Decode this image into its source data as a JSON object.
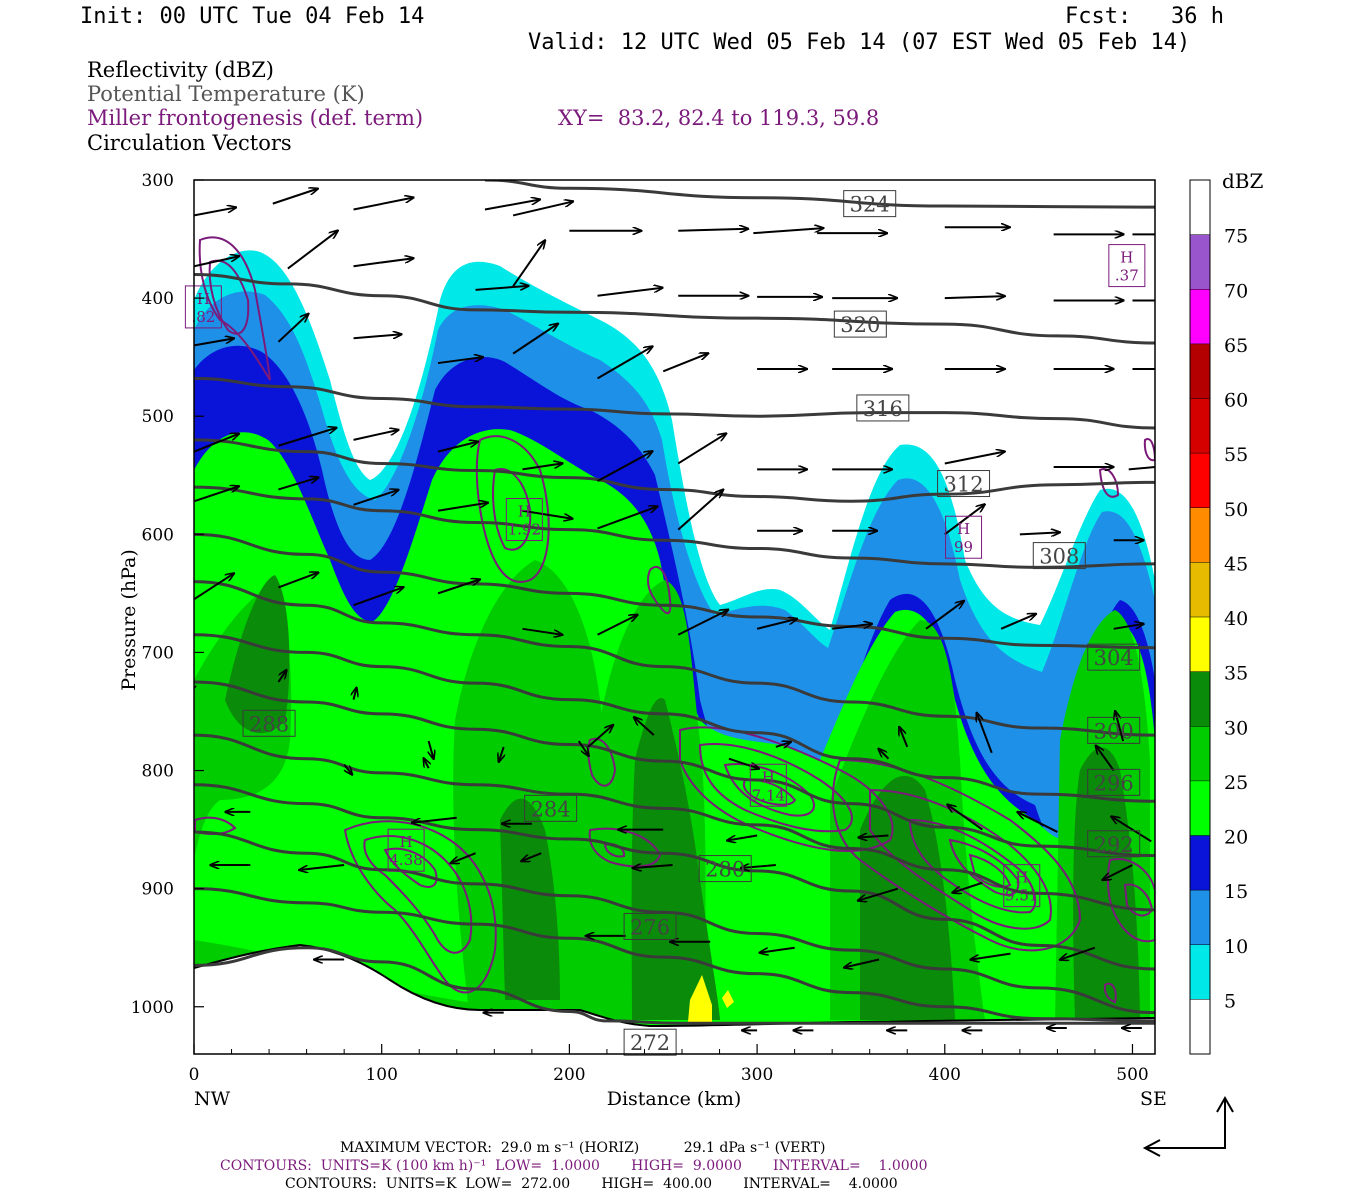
{
  "header": {
    "init": "Init: 00 UTC Tue 04 Feb 14",
    "fcst": "Fcst:   36 h",
    "valid": "Valid: 12 UTC Wed 05 Feb 14 (07 EST Wed 05 Feb 14)"
  },
  "fields": {
    "reflectivity": "Reflectivity (dBZ)",
    "theta": "Potential Temperature (K)",
    "miller": "Miller frontogenesis (def. term)",
    "xy": "XY=  83.2, 82.4 to 119.3, 59.8",
    "vectors": "Circulation Vectors"
  },
  "colors": {
    "miller": "#7b1a7b",
    "theta": "#3a3a3a",
    "vector": "#000000"
  },
  "chart_data": {
    "type": "cross-section",
    "xlabel": "Distance (km)",
    "ylabel": "Pressure (hPa)",
    "xlim": [
      0,
      512
    ],
    "ylim": [
      1040,
      300
    ],
    "x_ticks": [
      0,
      100,
      200,
      300,
      400,
      500
    ],
    "y_ticks": [
      300,
      400,
      500,
      600,
      700,
      800,
      900,
      1000
    ],
    "x_end_labels": {
      "left": "NW",
      "right": "SE"
    },
    "colorbar": {
      "title": "dBZ",
      "levels": [
        5,
        10,
        15,
        20,
        25,
        30,
        35,
        40,
        45,
        50,
        55,
        60,
        65,
        70,
        75
      ],
      "colors": [
        "#ffffff",
        "#00e8e8",
        "#1e90e8",
        "#0a14d8",
        "#00ff00",
        "#00cc00",
        "#0a8c0a",
        "#ffff00",
        "#e6bb00",
        "#ff8c00",
        "#ff0000",
        "#d40000",
        "#b40000",
        "#ff00ff",
        "#9955cc",
        "#ffffff"
      ]
    },
    "theta_contours": [
      {
        "level": "324",
        "points": [
          [
            155,
            300
          ],
          [
            200,
            307
          ],
          [
            300,
            315
          ],
          [
            400,
            322
          ],
          [
            512,
            323
          ]
        ],
        "label_at": [
          360,
          320
        ]
      },
      {
        "level": "320",
        "points": [
          [
            0,
            380
          ],
          [
            50,
            388
          ],
          [
            100,
            398
          ],
          [
            150,
            410
          ],
          [
            200,
            412
          ],
          [
            300,
            417
          ],
          [
            400,
            422
          ],
          [
            460,
            432
          ],
          [
            512,
            438
          ]
        ],
        "label_at": [
          355,
          422
        ]
      },
      {
        "level": "316",
        "points": [
          [
            0,
            468
          ],
          [
            50,
            475
          ],
          [
            100,
            485
          ],
          [
            150,
            492
          ],
          [
            200,
            494
          ],
          [
            250,
            498
          ],
          [
            300,
            500
          ],
          [
            360,
            497
          ],
          [
            400,
            497
          ],
          [
            460,
            502
          ],
          [
            512,
            510
          ]
        ],
        "label_at": [
          367,
          493
        ]
      },
      {
        "level": "312",
        "points": [
          [
            0,
            520
          ],
          [
            60,
            530
          ],
          [
            100,
            540
          ],
          [
            150,
            546
          ],
          [
            200,
            552
          ],
          [
            250,
            562
          ],
          [
            300,
            568
          ],
          [
            350,
            572
          ],
          [
            400,
            566
          ],
          [
            460,
            558
          ],
          [
            512,
            556
          ]
        ],
        "label_at": [
          410,
          557
        ]
      },
      {
        "level": "308",
        "points": [
          [
            0,
            560
          ],
          [
            60,
            570
          ],
          [
            100,
            580
          ],
          [
            150,
            590
          ],
          [
            200,
            596
          ],
          [
            250,
            605
          ],
          [
            300,
            612
          ],
          [
            350,
            620
          ],
          [
            400,
            625
          ],
          [
            450,
            628
          ],
          [
            512,
            625
          ]
        ],
        "label_at": [
          461,
          618
        ]
      },
      {
        "level": "304",
        "points": [
          [
            0,
            600
          ],
          [
            60,
            617
          ],
          [
            100,
            632
          ],
          [
            150,
            642
          ],
          [
            200,
            650
          ],
          [
            250,
            660
          ],
          [
            300,
            670
          ],
          [
            350,
            678
          ],
          [
            400,
            688
          ],
          [
            450,
            694
          ],
          [
            512,
            696
          ]
        ],
        "label_at": [
          490,
          704
        ]
      },
      {
        "level": "300",
        "points": [
          [
            0,
            640
          ],
          [
            60,
            660
          ],
          [
            100,
            675
          ],
          [
            150,
            685
          ],
          [
            200,
            695
          ],
          [
            250,
            712
          ],
          [
            300,
            726
          ],
          [
            350,
            742
          ],
          [
            400,
            754
          ],
          [
            450,
            764
          ],
          [
            512,
            770
          ]
        ],
        "label_at": [
          490,
          766
        ]
      },
      {
        "level": "296",
        "points": [
          [
            0,
            685
          ],
          [
            60,
            700
          ],
          [
            100,
            712
          ],
          [
            150,
            726
          ],
          [
            200,
            740
          ],
          [
            250,
            752
          ],
          [
            300,
            768
          ],
          [
            350,
            790
          ],
          [
            400,
            806
          ],
          [
            450,
            820
          ],
          [
            512,
            826
          ]
        ],
        "label_at": [
          490,
          810
        ]
      },
      {
        "level": "292",
        "points": [
          [
            0,
            725
          ],
          [
            60,
            742
          ],
          [
            100,
            752
          ],
          [
            150,
            765
          ],
          [
            200,
            778
          ],
          [
            250,
            792
          ],
          [
            300,
            808
          ],
          [
            350,
            828
          ],
          [
            400,
            848
          ],
          [
            450,
            864
          ],
          [
            512,
            872
          ]
        ],
        "label_at": [
          490,
          862
        ]
      },
      {
        "level": "288",
        "points": [
          [
            0,
            770
          ],
          [
            60,
            790
          ],
          [
            100,
            802
          ],
          [
            150,
            812
          ],
          [
            200,
            820
          ],
          [
            250,
            832
          ],
          [
            300,
            846
          ],
          [
            350,
            866
          ],
          [
            400,
            884
          ],
          [
            450,
            904
          ],
          [
            512,
            918
          ]
        ],
        "label_at": [
          40,
          760
        ]
      },
      {
        "level": "284",
        "points": [
          [
            0,
            812
          ],
          [
            60,
            828
          ],
          [
            100,
            840
          ],
          [
            150,
            850
          ],
          [
            200,
            858
          ],
          [
            250,
            870
          ],
          [
            300,
            885
          ],
          [
            350,
            902
          ],
          [
            400,
            926
          ],
          [
            450,
            948
          ],
          [
            512,
            968
          ]
        ],
        "label_at": [
          190,
          832
        ]
      },
      {
        "level": "280",
        "points": [
          [
            0,
            852
          ],
          [
            60,
            870
          ],
          [
            100,
            884
          ],
          [
            150,
            896
          ],
          [
            200,
            906
          ],
          [
            250,
            920
          ],
          [
            300,
            938
          ],
          [
            350,
            952
          ],
          [
            400,
            968
          ],
          [
            450,
            984
          ],
          [
            512,
            1005
          ]
        ],
        "label_at": [
          283,
          883
        ]
      },
      {
        "level": "276",
        "points": [
          [
            0,
            900
          ],
          [
            60,
            912
          ],
          [
            100,
            920
          ],
          [
            150,
            930
          ],
          [
            200,
            942
          ],
          [
            250,
            958
          ],
          [
            300,
            972
          ],
          [
            350,
            988
          ],
          [
            400,
            1000
          ],
          [
            450,
            1010
          ],
          [
            512,
            1012
          ]
        ],
        "label_at": [
          243,
          932
        ]
      },
      {
        "level": "272",
        "points": [
          [
            0,
            965
          ],
          [
            60,
            950
          ],
          [
            100,
            962
          ],
          [
            150,
            985
          ],
          [
            200,
            1004
          ],
          [
            220,
            1012
          ],
          [
            260,
            1014
          ],
          [
            512,
            1014
          ]
        ],
        "label_at": [
          243,
          1030
        ]
      }
    ],
    "surface": [
      [
        0,
        968
      ],
      [
        40,
        958
      ],
      [
        70,
        949
      ],
      [
        90,
        960
      ],
      [
        120,
        985
      ],
      [
        150,
        1005
      ],
      [
        190,
        1010
      ],
      [
        215,
        1018
      ],
      [
        240,
        1020
      ],
      [
        300,
        1019
      ],
      [
        512,
        1016
      ]
    ],
    "miller_maxima": [
      {
        "label": "H",
        "value": ".82",
        "at": [
          5,
          410
        ]
      },
      {
        "label": "H",
        "value": ".37",
        "at": [
          497,
          375
        ]
      },
      {
        "label": "H",
        "value": "1.92",
        "at": [
          176,
          590
        ]
      },
      {
        "label": "H",
        "value": "99",
        "at": [
          410,
          605
        ]
      },
      {
        "label": "H",
        "value": "7.14",
        "at": [
          306,
          815
        ]
      },
      {
        "label": "H",
        "value": "4.38",
        "at": [
          113,
          870
        ]
      },
      {
        "label": "H",
        "value": "9.51",
        "at": [
          441,
          900
        ]
      }
    ]
  },
  "footer": {
    "max_vector": "MAXIMUM VECTOR:  29.0 m s⁻¹ (HORIZ)          29.1 dPa s⁻¹ (VERT)",
    "contours1": "CONTOURS:  UNITS=K (100 km h)⁻¹  LOW=  1.0000       HIGH=  9.0000       INTERVAL=    1.0000",
    "contours2": "CONTOURS:  UNITS=K  LOW=  272.00       HIGH=  400.00       INTERVAL=    4.0000"
  }
}
